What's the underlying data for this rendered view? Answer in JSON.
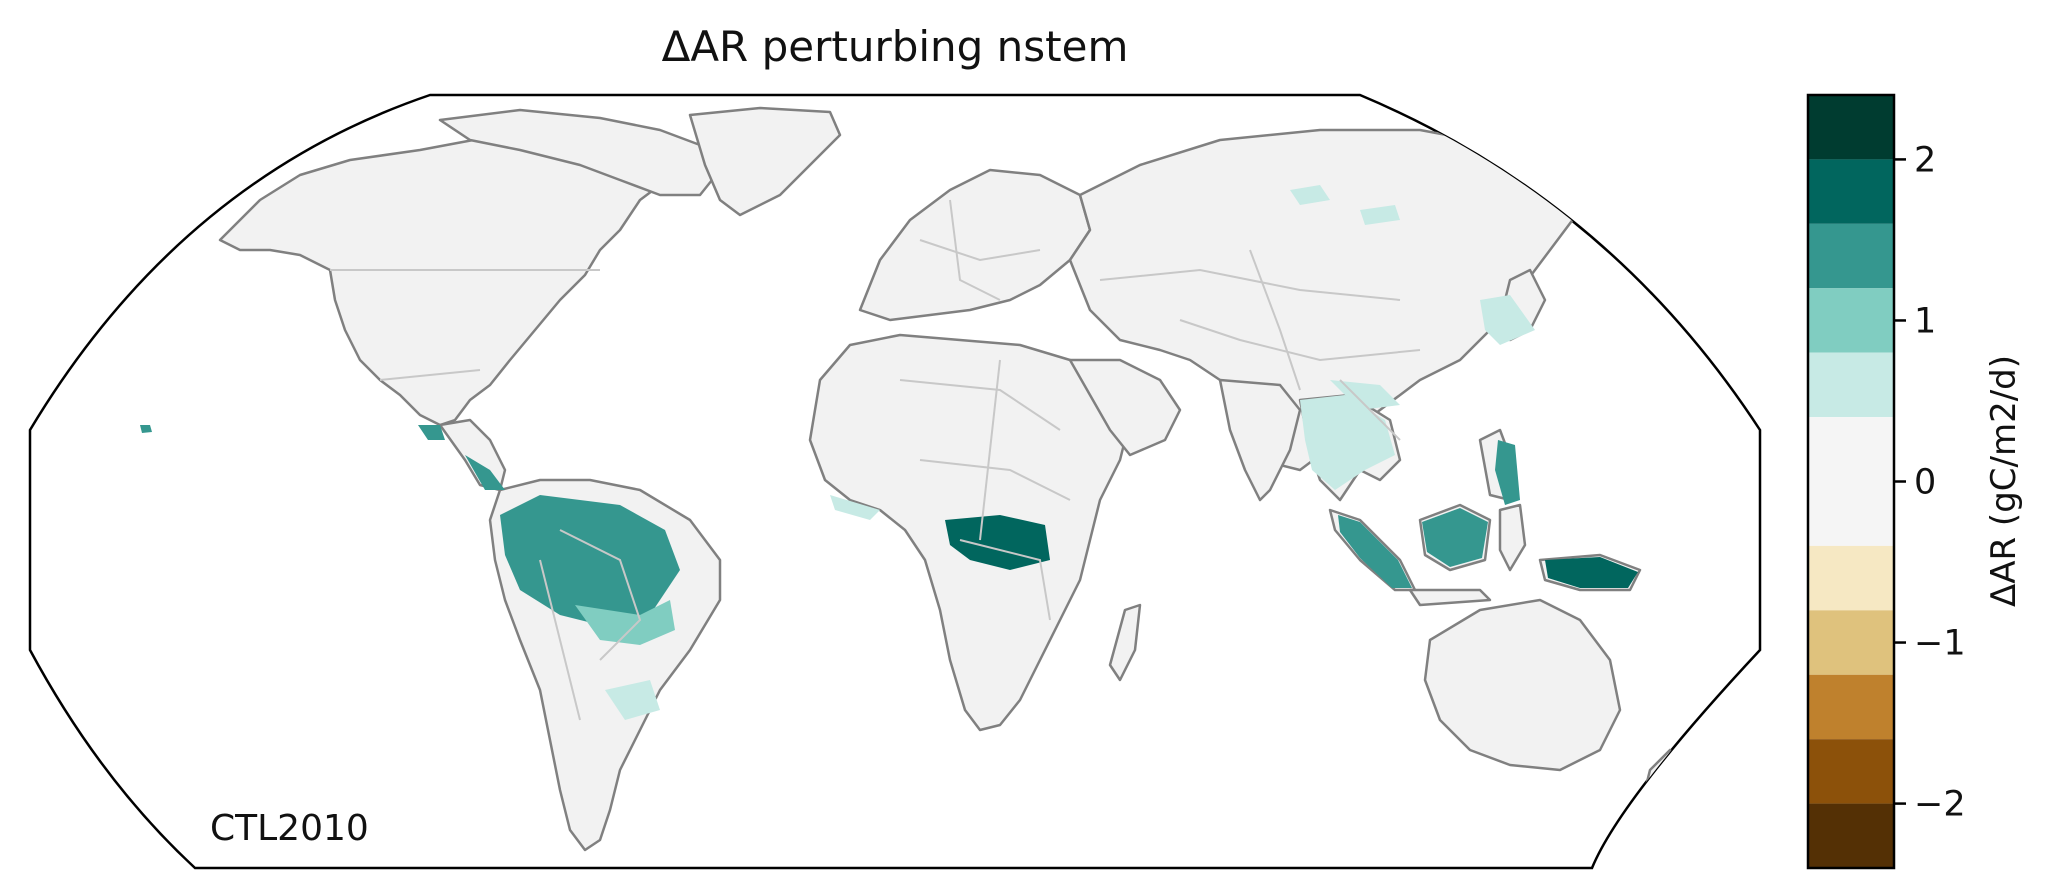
{
  "map": {
    "title": "ΔAR perturbing nstem",
    "corner_label": "CTL2010",
    "projection": "Robinson",
    "land_color": "#f2f2f2",
    "coastline_color": "#808080",
    "border_color": "#c8c8c8",
    "frame_color": "#000000"
  },
  "colorbar": {
    "label": "ΔAR (gC/m2/d)",
    "range": [
      -2.4,
      2.4
    ],
    "ticks": [
      {
        "value": 2,
        "label": "2"
      },
      {
        "value": 1,
        "label": "1"
      },
      {
        "value": 0,
        "label": "0"
      },
      {
        "value": -1,
        "label": "−1"
      },
      {
        "value": -2,
        "label": "−2"
      }
    ],
    "bins": [
      {
        "from": 2.0,
        "to": 2.4,
        "color": "#003c30"
      },
      {
        "from": 1.6,
        "to": 2.0,
        "color": "#01665e"
      },
      {
        "from": 1.2,
        "to": 1.6,
        "color": "#35978f"
      },
      {
        "from": 0.8,
        "to": 1.2,
        "color": "#80cdc1"
      },
      {
        "from": 0.4,
        "to": 0.8,
        "color": "#c7eae5"
      },
      {
        "from": -0.4,
        "to": 0.4,
        "color": "#f5f5f5"
      },
      {
        "from": -0.8,
        "to": -0.4,
        "color": "#f6e8c3"
      },
      {
        "from": -1.2,
        "to": -0.8,
        "color": "#dfc27d"
      },
      {
        "from": -1.6,
        "to": -1.2,
        "color": "#bf812d"
      },
      {
        "from": -2.0,
        "to": -1.6,
        "color": "#8c510a"
      },
      {
        "from": -2.4,
        "to": -2.0,
        "color": "#543005"
      }
    ]
  },
  "anomaly_regions": [
    {
      "region": "amazon-basin-core",
      "value": 1.8
    },
    {
      "region": "amazon-basin-mid",
      "value": 1.4
    },
    {
      "region": "amazon-basin-edge",
      "value": 1.0
    },
    {
      "region": "central-america",
      "value": 1.4
    },
    {
      "region": "congo-basin",
      "value": 1.8
    },
    {
      "region": "west-africa-coast",
      "value": 0.6
    },
    {
      "region": "sumatra",
      "value": 1.4
    },
    {
      "region": "borneo",
      "value": 1.4
    },
    {
      "region": "sulawesi",
      "value": 1.4
    },
    {
      "region": "new-guinea",
      "value": 1.8
    },
    {
      "region": "mainland-southeast-asia",
      "value": 0.6
    },
    {
      "region": "south-china",
      "value": 0.6
    },
    {
      "region": "east-asia",
      "value": 0.6
    },
    {
      "region": "siberia",
      "value": 0.6
    },
    {
      "region": "southeast-brazil",
      "value": 0.6
    },
    {
      "region": "hawaii",
      "value": 1.4
    }
  ]
}
